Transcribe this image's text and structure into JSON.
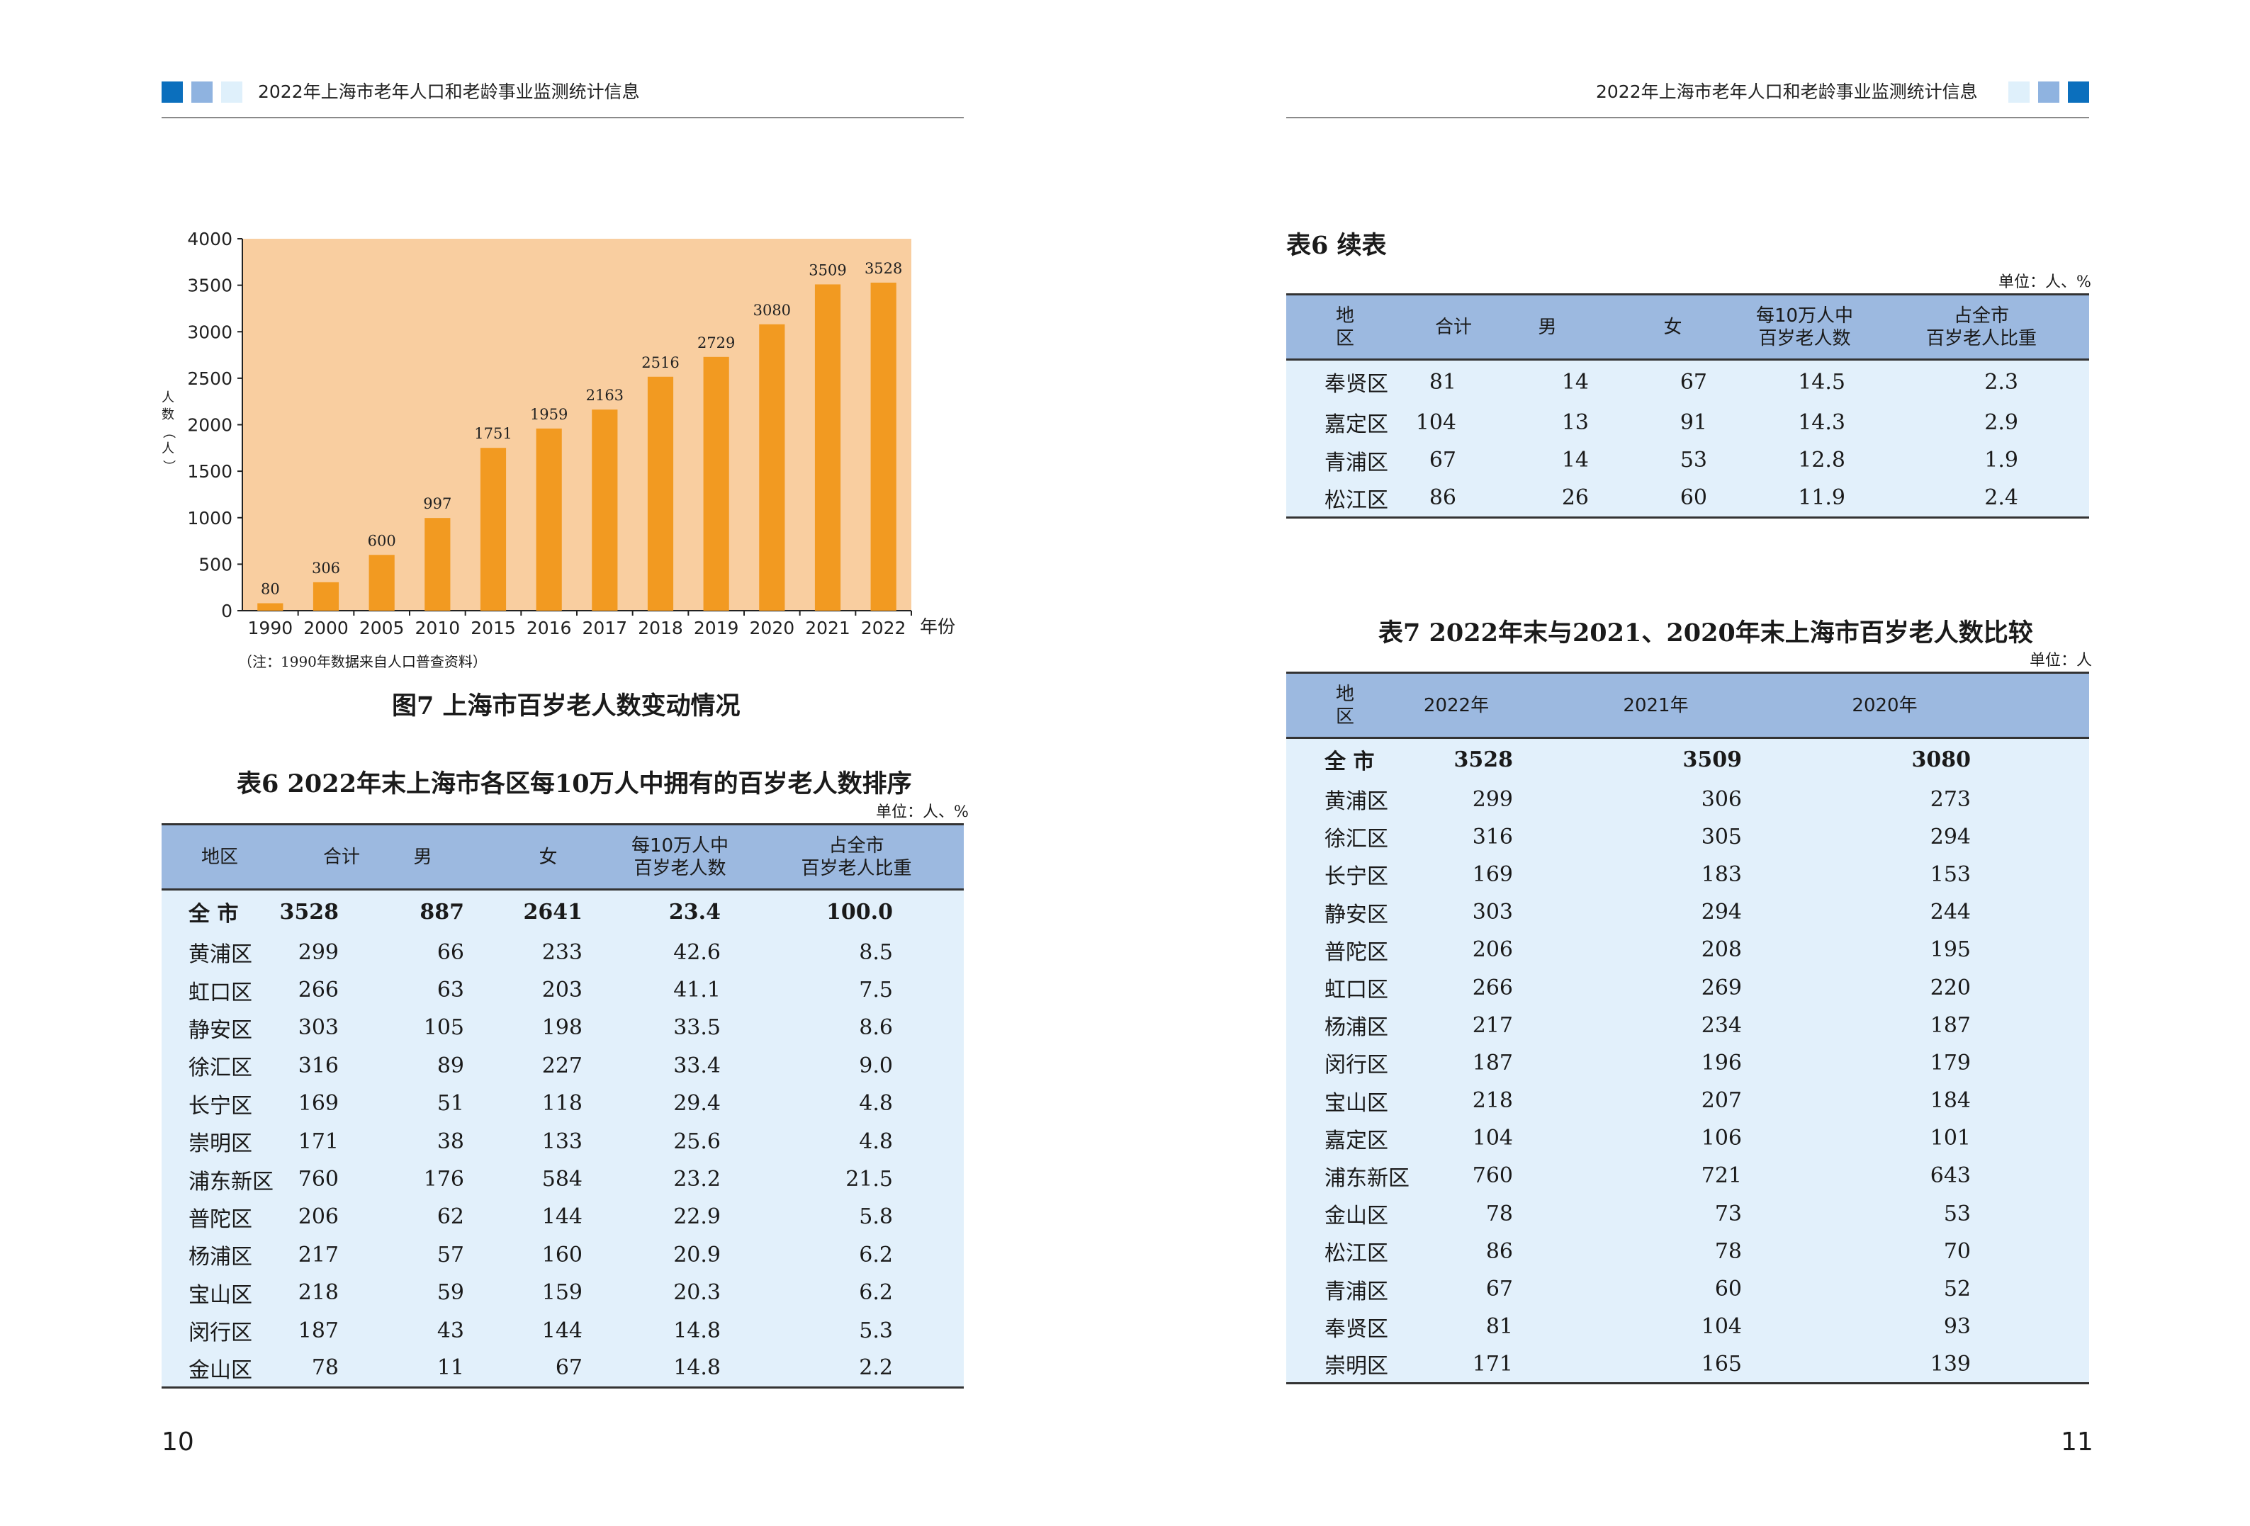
{
  "header": {
    "title": "2022年上海市老年人口和老龄事业监测统计信息"
  },
  "page_numbers": {
    "left": "10",
    "right": "11"
  },
  "colors": {
    "dark_blue": "#0b6fbd",
    "mid_blue": "#8fb3e0",
    "light_blue": "#dff0fb",
    "bar": "#f29a21",
    "plot_bg": "#f9ceA0"
  },
  "figure7": {
    "caption": "图7  上海市百岁老人数变动情况",
    "note": "（注：1990年数据来自人口普查资料）",
    "ylabel_chars": [
      "人",
      "数",
      "（",
      "人",
      "）"
    ],
    "xunit": "年份"
  },
  "chart_data": {
    "type": "bar",
    "categories": [
      "1990",
      "2000",
      "2005",
      "2010",
      "2015",
      "2016",
      "2017",
      "2018",
      "2019",
      "2020",
      "2021",
      "2022"
    ],
    "values": [
      80,
      306,
      600,
      997,
      1751,
      1959,
      2163,
      2516,
      2729,
      3080,
      3509,
      3528
    ],
    "yticks": [
      0,
      500,
      1000,
      1500,
      2000,
      2500,
      3000,
      3500,
      4000
    ],
    "ylim": [
      0,
      4000
    ],
    "ylabel": "人数（人）",
    "xlabel": "年份",
    "title": "图7  上海市百岁老人数变动情况",
    "grid": false
  },
  "table6": {
    "caption": "表6  2022年末上海市各区每10万人中拥有的百岁老人数排序",
    "unit": "单位：人、%",
    "headers": [
      "地区",
      "合计",
      "男",
      "女",
      "每10万人中\n百岁老人数",
      "占全市\n百岁老人比重"
    ],
    "rows": [
      [
        "全  市",
        "3528",
        "887",
        "2641",
        "23.4",
        "100.0"
      ],
      [
        "黄浦区",
        "299",
        "66",
        "233",
        "42.6",
        "8.5"
      ],
      [
        "虹口区",
        "266",
        "63",
        "203",
        "41.1",
        "7.5"
      ],
      [
        "静安区",
        "303",
        "105",
        "198",
        "33.5",
        "8.6"
      ],
      [
        "徐汇区",
        "316",
        "89",
        "227",
        "33.4",
        "9.0"
      ],
      [
        "长宁区",
        "169",
        "51",
        "118",
        "29.4",
        "4.8"
      ],
      [
        "崇明区",
        "171",
        "38",
        "133",
        "25.6",
        "4.8"
      ],
      [
        "浦东新区",
        "760",
        "176",
        "584",
        "23.2",
        "21.5"
      ],
      [
        "普陀区",
        "206",
        "62",
        "144",
        "22.9",
        "5.8"
      ],
      [
        "杨浦区",
        "217",
        "57",
        "160",
        "20.9",
        "6.2"
      ],
      [
        "宝山区",
        "218",
        "59",
        "159",
        "20.3",
        "6.2"
      ],
      [
        "闵行区",
        "187",
        "43",
        "144",
        "14.8",
        "5.3"
      ],
      [
        "金山区",
        "78",
        "11",
        "67",
        "14.8",
        "2.2"
      ]
    ]
  },
  "table6_cont": {
    "caption": "表6    续表",
    "unit": "单位：人、%",
    "headers": [
      "地区",
      "合计",
      "男",
      "女",
      "每10万人中\n百岁老人数",
      "占全市\n百岁老人比重"
    ],
    "rows": [
      [
        "奉贤区",
        "81",
        "14",
        "67",
        "14.5",
        "2.3"
      ],
      [
        "嘉定区",
        "104",
        "13",
        "91",
        "14.3",
        "2.9"
      ],
      [
        "青浦区",
        "67",
        "14",
        "53",
        "12.8",
        "1.9"
      ],
      [
        "松江区",
        "86",
        "26",
        "60",
        "11.9",
        "2.4"
      ]
    ]
  },
  "table7": {
    "caption": "表7  2022年末与2021、2020年末上海市百岁老人数比较",
    "unit": "单位：人",
    "headers": [
      "地区",
      "2022年",
      "2021年",
      "2020年"
    ],
    "rows": [
      [
        "全  市",
        "3528",
        "3509",
        "3080"
      ],
      [
        "黄浦区",
        "299",
        "306",
        "273"
      ],
      [
        "徐汇区",
        "316",
        "305",
        "294"
      ],
      [
        "长宁区",
        "169",
        "183",
        "153"
      ],
      [
        "静安区",
        "303",
        "294",
        "244"
      ],
      [
        "普陀区",
        "206",
        "208",
        "195"
      ],
      [
        "虹口区",
        "266",
        "269",
        "220"
      ],
      [
        "杨浦区",
        "217",
        "234",
        "187"
      ],
      [
        "闵行区",
        "187",
        "196",
        "179"
      ],
      [
        "宝山区",
        "218",
        "207",
        "184"
      ],
      [
        "嘉定区",
        "104",
        "106",
        "101"
      ],
      [
        "浦东新区",
        "760",
        "721",
        "643"
      ],
      [
        "金山区",
        "78",
        "73",
        "53"
      ],
      [
        "松江区",
        "86",
        "78",
        "70"
      ],
      [
        "青浦区",
        "67",
        "60",
        "52"
      ],
      [
        "奉贤区",
        "81",
        "104",
        "93"
      ],
      [
        "崇明区",
        "171",
        "165",
        "139"
      ]
    ]
  }
}
